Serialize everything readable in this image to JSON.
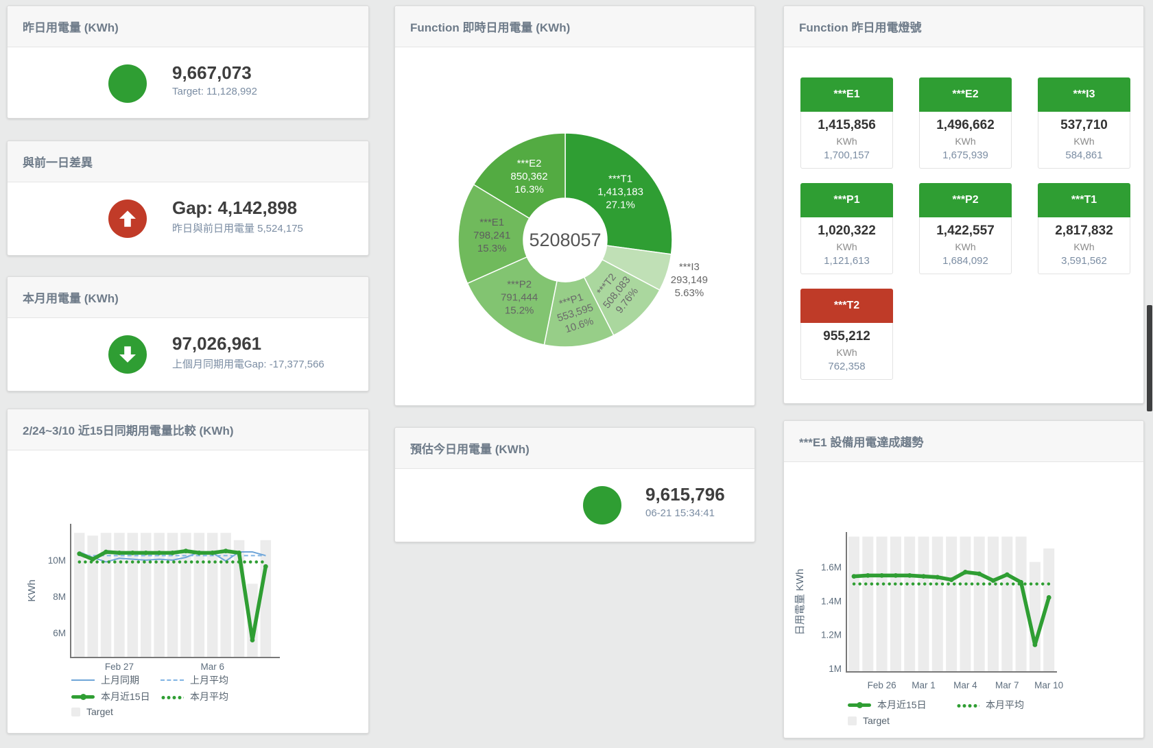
{
  "stat_cards": {
    "yesterday": {
      "title": "昨日用電量 (KWh)",
      "value": "9,667,073",
      "subtitle": "Target: 11,128,992",
      "indicator": "circle",
      "indicator_color": "#2f9e33"
    },
    "day_gap": {
      "title": "與前一日差異",
      "value": "Gap: 4,142,898",
      "subtitle": "昨日與前日用電量 5,524,175",
      "indicator": "arrow-up",
      "indicator_color": "#c13b28"
    },
    "month": {
      "title": "本月用電量 (KWh)",
      "value": "97,026,961",
      "subtitle": "上個月同期用電Gap: -17,377,566",
      "indicator": "arrow-down",
      "indicator_color": "#2f9e33"
    },
    "today_estimate": {
      "title": "預估今日用電量 (KWh)",
      "value": "9,615,796",
      "subtitle": "06-21 15:34:41",
      "indicator": "circle",
      "indicator_color": "#2f9e33"
    }
  },
  "lights_panel": {
    "title": "Function 昨日用電燈號",
    "unit": "KWh",
    "colors": {
      "green": "#2f9e33",
      "red": "#bf3b28"
    },
    "tiles": [
      {
        "name": "***E1",
        "value": "1,415,856",
        "target": "1,700,157",
        "status": "green"
      },
      {
        "name": "***E2",
        "value": "1,496,662",
        "target": "1,675,939",
        "status": "green"
      },
      {
        "name": "***I3",
        "value": "537,710",
        "target": "584,861",
        "status": "green"
      },
      {
        "name": "***P1",
        "value": "1,020,322",
        "target": "1,121,613",
        "status": "green"
      },
      {
        "name": "***P2",
        "value": "1,422,557",
        "target": "1,684,092",
        "status": "green"
      },
      {
        "name": "***T1",
        "value": "2,817,832",
        "target": "3,591,562",
        "status": "green"
      },
      {
        "name": "***T2",
        "value": "955,212",
        "target": "762,358",
        "status": "red"
      }
    ]
  },
  "chart_data": [
    {
      "id": "realtime_donut",
      "type": "donut",
      "title": "Function 即時日用電量 (KWh)",
      "center_total": "5208057",
      "slices": [
        {
          "name": "***T1",
          "value": 1413183,
          "value_label": "1,413,183",
          "pct_label": "27.1%",
          "color": "#2f9e33",
          "text_color": "#ffffff",
          "label": "inside",
          "rotate": 0
        },
        {
          "name": "***I3",
          "value": 293149,
          "value_label": "293,149",
          "pct_label": "5.63%",
          "color": "#c0e0b6",
          "text_color": "#666666",
          "label": "outside",
          "rotate": 0
        },
        {
          "name": "***T2",
          "value": 508083,
          "value_label": "508,083",
          "pct_label": "9.76%",
          "color": "#aad79e",
          "text_color": "#6a6a6a",
          "label": "inside",
          "rotate": -52
        },
        {
          "name": "***P1",
          "value": 553595,
          "value_label": "553,595",
          "pct_label": "10.6%",
          "color": "#97ce88",
          "text_color": "#6a6a6a",
          "label": "inside",
          "rotate": -18
        },
        {
          "name": "***P2",
          "value": 791444,
          "value_label": "791,444",
          "pct_label": "15.2%",
          "color": "#82c471",
          "text_color": "#646464",
          "label": "inside",
          "rotate": 0
        },
        {
          "name": "***E1",
          "value": 798241,
          "value_label": "798,241",
          "pct_label": "15.3%",
          "color": "#70ba5c",
          "text_color": "#5e5e5e",
          "label": "inside",
          "rotate": 0
        },
        {
          "name": "***E2",
          "value": 850362,
          "value_label": "850,362",
          "pct_label": "16.3%",
          "color": "#53ab42",
          "text_color": "#ffffff",
          "label": "inside",
          "rotate": 0
        }
      ]
    },
    {
      "id": "compare_15day",
      "type": "line+bar",
      "title": "2/24~3/10 近15日同期用電量比較 (KWh)",
      "ylabel": "KWh",
      "unit": "M KWh",
      "ylim": [
        4.64,
        12.1
      ],
      "yticks": [
        {
          "value": 6,
          "label": "6M"
        },
        {
          "value": 8,
          "label": "8M"
        },
        {
          "value": 10,
          "label": "10M"
        }
      ],
      "xticks": [
        {
          "index": 3,
          "label": "Feb 27"
        },
        {
          "index": 10,
          "label": "Mar 6"
        }
      ],
      "target_bars": {
        "name": "Target",
        "color": "#ececec",
        "values": [
          11.5,
          11.35,
          11.5,
          11.5,
          11.5,
          11.5,
          11.5,
          11.5,
          11.5,
          11.5,
          11.5,
          11.5,
          11.1,
          8.7,
          11.1
        ]
      },
      "series": [
        {
          "name": "上月同期",
          "style": "thin",
          "color": "#6fa5d8",
          "values": [
            10.45,
            10.15,
            9.9,
            10.1,
            10.05,
            10.0,
            10.05,
            10.0,
            10.15,
            10.45,
            10.4,
            9.95,
            10.45,
            10.45,
            10.25
          ]
        },
        {
          "name": "上月平均",
          "style": "dashed",
          "color": "#7fb3e3",
          "constant": 10.25
        },
        {
          "name": "本月近15日",
          "style": "thick",
          "color": "#2f9e33",
          "values": [
            10.35,
            10.05,
            10.45,
            10.4,
            10.4,
            10.4,
            10.4,
            10.4,
            10.5,
            10.4,
            10.4,
            10.5,
            10.4,
            5.6,
            9.65
          ]
        },
        {
          "name": "本月平均",
          "style": "dotted",
          "color": "#2f9e33",
          "constant": 9.9
        }
      ],
      "legend_rows": [
        [
          {
            "label": "上月同期",
            "icon": "thin",
            "color": "#6fa5d8"
          },
          {
            "label": "上月平均",
            "icon": "dashed",
            "color": "#7fb3e3"
          }
        ],
        [
          {
            "label": "本月近15日",
            "icon": "thick",
            "color": "#2f9e33"
          },
          {
            "label": "本月平均",
            "icon": "dotted",
            "color": "#2f9e33"
          }
        ],
        [
          {
            "label": "Target",
            "icon": "square",
            "color": "#ececec"
          }
        ]
      ]
    },
    {
      "id": "e1_trend",
      "type": "line+bar",
      "title": "***E1 設備用電達成趨勢",
      "ylabel": "日用電量 KWh",
      "unit": "M KWh",
      "ylim": [
        0.98,
        1.84
      ],
      "yticks": [
        {
          "value": 1,
          "label": "1M"
        },
        {
          "value": 1.2,
          "label": "1.2M"
        },
        {
          "value": 1.4,
          "label": "1.4M"
        },
        {
          "value": 1.6,
          "label": "1.6M"
        }
      ],
      "xticks": [
        {
          "index": 2,
          "label": "Feb 26"
        },
        {
          "index": 5,
          "label": "Mar 1"
        },
        {
          "index": 8,
          "label": "Mar 4"
        },
        {
          "index": 11,
          "label": "Mar 7"
        },
        {
          "index": 14,
          "label": "Mar 10"
        }
      ],
      "target_bars": {
        "name": "Target",
        "color": "#ececec",
        "values": [
          1.78,
          1.78,
          1.78,
          1.78,
          1.78,
          1.78,
          1.78,
          1.78,
          1.78,
          1.78,
          1.78,
          1.78,
          1.78,
          1.63,
          1.71
        ]
      },
      "series": [
        {
          "name": "本月近15日",
          "style": "thick",
          "color": "#2f9e33",
          "values": [
            1.545,
            1.55,
            1.55,
            1.55,
            1.55,
            1.545,
            1.54,
            1.525,
            1.57,
            1.56,
            1.52,
            1.555,
            1.51,
            1.14,
            1.42
          ]
        },
        {
          "name": "本月平均",
          "style": "dotted",
          "color": "#2f9e33",
          "constant": 1.5
        }
      ],
      "legend_rows": [
        [
          {
            "label": "本月近15日",
            "icon": "thick",
            "color": "#2f9e33"
          },
          {
            "label": "本月平均",
            "icon": "dotted",
            "color": "#2f9e33"
          }
        ],
        [
          {
            "label": "Target",
            "icon": "square",
            "color": "#ececec"
          }
        ]
      ]
    }
  ]
}
